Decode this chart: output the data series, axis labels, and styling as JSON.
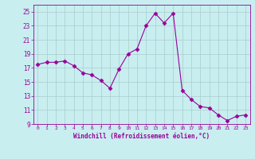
{
  "x": [
    0,
    1,
    2,
    3,
    4,
    5,
    6,
    7,
    8,
    9,
    10,
    11,
    12,
    13,
    14,
    15,
    16,
    17,
    18,
    19,
    20,
    21,
    22,
    23
  ],
  "y": [
    17.5,
    17.8,
    17.8,
    18.0,
    17.3,
    16.3,
    16.0,
    15.2,
    14.1,
    16.8,
    19.0,
    19.7,
    23.0,
    24.8,
    23.4,
    24.8,
    13.8,
    12.5,
    11.5,
    11.3,
    10.3,
    9.5,
    10.1,
    10.3
  ],
  "line_color": "#990099",
  "marker": "D",
  "marker_size": 2.5,
  "bg_color": "#c8eef0",
  "grid_color": "#aacccc",
  "xlabel": "Windchill (Refroidissement éolien,°C)",
  "xlabel_color": "#990099",
  "tick_color": "#990099",
  "ylim": [
    9,
    26
  ],
  "xlim": [
    -0.5,
    23.5
  ],
  "yticks": [
    9,
    11,
    13,
    15,
    17,
    19,
    21,
    23,
    25
  ],
  "xticks": [
    0,
    1,
    2,
    3,
    4,
    5,
    6,
    7,
    8,
    9,
    10,
    11,
    12,
    13,
    14,
    15,
    16,
    17,
    18,
    19,
    20,
    21,
    22,
    23
  ]
}
